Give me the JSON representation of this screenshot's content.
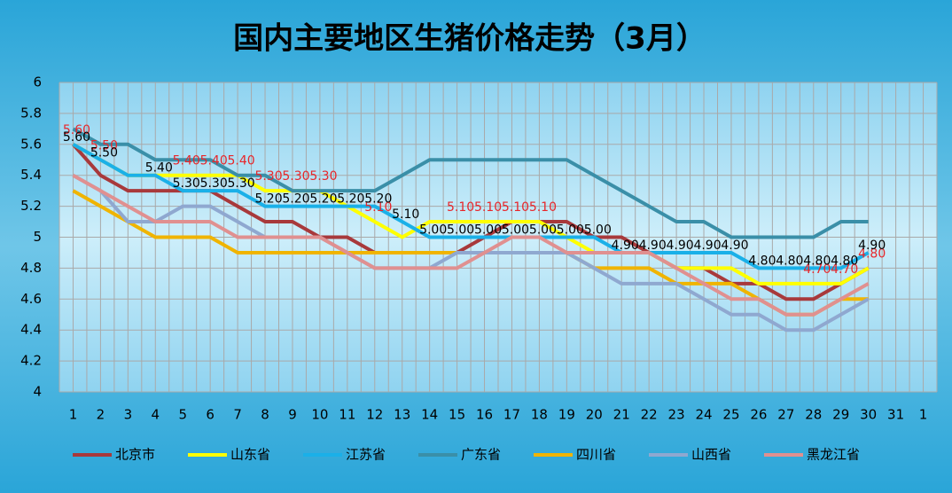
{
  "chart_data": {
    "type": "line",
    "title": "国内主要地区生猪价格走势（3月）",
    "categories": [
      "1",
      "2",
      "3",
      "4",
      "5",
      "6",
      "7",
      "8",
      "9",
      "10",
      "11",
      "12",
      "13",
      "14",
      "15",
      "16",
      "17",
      "18",
      "19",
      "20",
      "21",
      "22",
      "23",
      "24",
      "25",
      "26",
      "27",
      "28",
      "29",
      "30",
      "31",
      "1"
    ],
    "ylim": [
      4,
      6
    ],
    "yticks": [
      4,
      4.2,
      4.4,
      4.6,
      4.8,
      5,
      5.2,
      5.4,
      5.6,
      5.8,
      6
    ],
    "grid": true,
    "legend": "bottom",
    "series": [
      {
        "name": "北京市",
        "color": "#a8393b",
        "values": [
          5.6,
          5.4,
          5.3,
          5.3,
          5.3,
          5.3,
          5.2,
          5.1,
          5.1,
          5.0,
          5.0,
          4.9,
          4.9,
          4.9,
          4.9,
          5.0,
          5.1,
          5.1,
          5.1,
          5.0,
          5.0,
          4.9,
          4.8,
          4.8,
          4.7,
          4.7,
          4.6,
          4.6,
          4.7,
          4.8,
          null,
          null
        ]
      },
      {
        "name": "山东省",
        "color": "#ffff00",
        "label_color": "#e8262a",
        "values": [
          5.6,
          5.5,
          5.4,
          5.4,
          5.4,
          5.4,
          5.4,
          5.3,
          5.3,
          5.3,
          5.2,
          5.1,
          5.0,
          5.1,
          5.1,
          5.1,
          5.1,
          5.1,
          5.0,
          4.9,
          4.9,
          4.9,
          4.8,
          4.8,
          4.8,
          4.7,
          4.7,
          4.7,
          4.7,
          4.8,
          null,
          null
        ],
        "value_labels": [
          "5.60",
          "5.50",
          null,
          null,
          "5.40",
          "5.40",
          "5.40",
          "5.30",
          "5.30",
          "5.30",
          null,
          "5.10",
          null,
          null,
          "5.10",
          "5.10",
          "5.10",
          "5.10",
          null,
          null,
          null,
          null,
          null,
          null,
          null,
          null,
          null,
          "4.70",
          "4.70",
          "4.80",
          null,
          null
        ]
      },
      {
        "name": "江苏省",
        "color": "#1ab0e8",
        "label_color": "#000000",
        "values": [
          5.6,
          5.5,
          5.4,
          5.4,
          5.3,
          5.3,
          5.3,
          5.2,
          5.2,
          5.2,
          5.2,
          5.2,
          5.1,
          5.0,
          5.0,
          5.0,
          5.0,
          5.0,
          5.0,
          5.0,
          4.9,
          4.9,
          4.9,
          4.9,
          4.9,
          4.8,
          4.8,
          4.8,
          4.8,
          4.9,
          null,
          null
        ],
        "value_labels": [
          "5.60",
          "5.50",
          null,
          "5.40",
          "5.30",
          "5.30",
          "5.30",
          "5.20",
          "5.20",
          "5.20",
          "5.20",
          "5.20",
          "5.10",
          "5.00",
          "5.00",
          "5.00",
          "5.00",
          "5.00",
          "5.00",
          "5.00",
          "4.90",
          "4.90",
          "4.90",
          "4.90",
          "4.90",
          "4.80",
          "4.80",
          "4.80",
          "4.80",
          "4.90",
          null,
          null
        ]
      },
      {
        "name": "广东省",
        "color": "#3a8fa8",
        "values": [
          5.7,
          5.6,
          5.6,
          5.5,
          5.5,
          5.5,
          5.4,
          5.4,
          5.3,
          5.3,
          5.3,
          5.3,
          5.4,
          5.5,
          5.5,
          5.5,
          5.5,
          5.5,
          5.5,
          5.4,
          5.3,
          5.2,
          5.1,
          5.1,
          5.0,
          5.0,
          5.0,
          5.0,
          5.1,
          5.1,
          null,
          null
        ]
      },
      {
        "name": "四川省",
        "color": "#f0b400",
        "values": [
          5.3,
          5.2,
          5.1,
          5.0,
          5.0,
          5.0,
          4.9,
          4.9,
          4.9,
          4.9,
          4.9,
          4.9,
          4.9,
          4.9,
          4.9,
          4.9,
          4.9,
          4.9,
          4.9,
          4.8,
          4.8,
          4.8,
          4.7,
          4.7,
          4.7,
          4.6,
          4.5,
          4.5,
          4.6,
          4.6,
          null,
          null
        ]
      },
      {
        "name": "山西省",
        "color": "#8fa8d0",
        "values": [
          5.4,
          5.3,
          5.1,
          5.1,
          5.2,
          5.2,
          5.1,
          5.0,
          5.0,
          5.0,
          4.9,
          4.8,
          4.8,
          4.8,
          4.9,
          4.9,
          4.9,
          4.9,
          4.9,
          4.8,
          4.7,
          4.7,
          4.7,
          4.6,
          4.5,
          4.5,
          4.4,
          4.4,
          4.5,
          4.6,
          null,
          null
        ]
      },
      {
        "name": "黑龙江省",
        "color": "#e09090",
        "values": [
          5.4,
          5.3,
          5.2,
          5.1,
          5.1,
          5.1,
          5.0,
          5.0,
          5.0,
          5.0,
          4.9,
          4.8,
          4.8,
          4.8,
          4.8,
          4.9,
          5.0,
          5.0,
          4.9,
          4.9,
          4.9,
          4.9,
          4.8,
          4.7,
          4.6,
          4.6,
          4.5,
          4.5,
          4.6,
          4.7,
          null,
          null
        ]
      }
    ]
  }
}
